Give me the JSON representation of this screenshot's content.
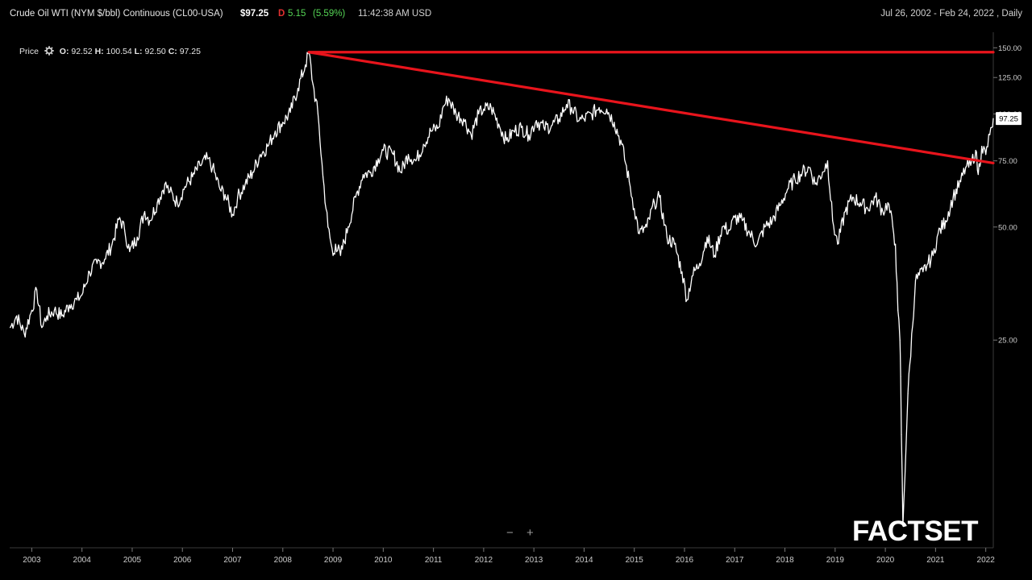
{
  "header": {
    "symbol_title": "Crude Oil WTI (NYM $/bbl) Continuous  (CL00-USA)",
    "last_price": "$97.25",
    "delayed_flag": "D",
    "change": "5.15",
    "change_pct": "(5.59%)",
    "time": "11:42:38 AM USD",
    "date_range": "Jul 26, 2002 - Feb 24, 2022 , Daily"
  },
  "legend": {
    "label": "Price",
    "open_label": "O:",
    "open": "92.52",
    "high_label": "H:",
    "high": "100.54",
    "low_label": "L:",
    "low": "92.50",
    "close_label": "C:",
    "close": "97.25"
  },
  "icons": {
    "settings": "gear-icon",
    "zoom_out": "minus-icon",
    "zoom_in": "plus-icon"
  },
  "zoom": {
    "out_label": "−",
    "in_label": "+"
  },
  "logo": {
    "text": "FACTSET"
  },
  "colors": {
    "background": "#000000",
    "price_line": "#ffffff",
    "trend_line": "#e8141c",
    "axis_text": "#cccccc"
  },
  "chart_data": {
    "type": "line",
    "title": "",
    "xlabel": "",
    "ylabel": "",
    "y_scale": "log",
    "ylim": [
      7,
      165
    ],
    "xlim": [
      2002.56,
      2022.15
    ],
    "x_tick_labels": [
      "2003",
      "2004",
      "2005",
      "2006",
      "2007",
      "2008",
      "2009",
      "2010",
      "2011",
      "2012",
      "2013",
      "2014",
      "2015",
      "2016",
      "2017",
      "2018",
      "2019",
      "2020",
      "2021",
      "2022"
    ],
    "y_tick_labels": [
      "25.00",
      "50.00",
      "75.00",
      "100.00",
      "125.00",
      "150.00"
    ],
    "last_value_label": "97.25",
    "grid": false,
    "series": [
      {
        "x": [
          2002.57,
          2002.7,
          2002.85,
          2003.0,
          2003.1,
          2003.2,
          2003.3,
          2003.45,
          2003.6,
          2003.75,
          2003.9,
          2004.0,
          2004.15,
          2004.3,
          2004.45,
          2004.6,
          2004.75,
          2004.85,
          2004.95,
          2005.1,
          2005.25,
          2005.35,
          2005.5,
          2005.65,
          2005.75,
          2005.9,
          2006.05,
          2006.2,
          2006.35,
          2006.5,
          2006.6,
          2006.75,
          2006.85,
          2007.0,
          2007.1,
          2007.25,
          2007.4,
          2007.55,
          2007.7,
          2007.85,
          2008.0,
          2008.15,
          2008.3,
          2008.45,
          2008.52,
          2008.6,
          2008.7,
          2008.8,
          2008.9,
          2009.0,
          2009.05,
          2009.15,
          2009.3,
          2009.45,
          2009.6,
          2009.75,
          2009.9,
          2010.0,
          2010.2,
          2010.35,
          2010.5,
          2010.65,
          2010.8,
          2010.95,
          2011.1,
          2011.2,
          2011.3,
          2011.45,
          2011.6,
          2011.75,
          2011.9,
          2012.0,
          2012.15,
          2012.3,
          2012.45,
          2012.6,
          2012.75,
          2012.9,
          2013.05,
          2013.2,
          2013.35,
          2013.5,
          2013.65,
          2013.75,
          2013.9,
          2014.0,
          2014.15,
          2014.3,
          2014.45,
          2014.6,
          2014.75,
          2014.9,
          2015.0,
          2015.1,
          2015.25,
          2015.4,
          2015.5,
          2015.65,
          2015.8,
          2015.95,
          2016.05,
          2016.15,
          2016.3,
          2016.45,
          2016.6,
          2016.75,
          2016.9,
          2017.0,
          2017.15,
          2017.3,
          2017.45,
          2017.6,
          2017.75,
          2017.9,
          2018.05,
          2018.2,
          2018.35,
          2018.5,
          2018.6,
          2018.75,
          2018.85,
          2018.95,
          2019.05,
          2019.2,
          2019.35,
          2019.5,
          2019.65,
          2019.8,
          2019.95,
          2020.05,
          2020.15,
          2020.2,
          2020.25,
          2020.29,
          2020.305,
          2020.32,
          2020.35,
          2020.45,
          2020.6,
          2020.75,
          2020.85,
          2020.95,
          2021.05,
          2021.2,
          2021.35,
          2021.5,
          2021.6,
          2021.7,
          2021.8,
          2021.85,
          2021.92,
          2022.0,
          2022.08,
          2022.12,
          2022.15
        ],
        "y": [
          27,
          29,
          26,
          30,
          34,
          27,
          29,
          30,
          29,
          31,
          32,
          33,
          38,
          40,
          41,
          45,
          53,
          49,
          43,
          47,
          55,
          52,
          58,
          65,
          62,
          58,
          64,
          68,
          73,
          76,
          72,
          63,
          61,
          54,
          60,
          65,
          70,
          78,
          82,
          90,
          95,
          101,
          117,
          135,
          146,
          120,
          100,
          68,
          50,
          42,
          45,
          42,
          50,
          60,
          69,
          70,
          76,
          80,
          78,
          70,
          78,
          75,
          83,
          90,
          92,
          105,
          110,
          100,
          97,
          88,
          100,
          103,
          104,
          94,
          85,
          90,
          92,
          88,
          96,
          92,
          93,
          97,
          106,
          104,
          96,
          97,
          100,
          104,
          103,
          95,
          83,
          66,
          56,
          48,
          50,
          58,
          60,
          47,
          45,
          38,
          32,
          37,
          40,
          47,
          42,
          50,
          49,
          53,
          52,
          48,
          45,
          50,
          52,
          57,
          63,
          67,
          70,
          72,
          65,
          70,
          75,
          52,
          45,
          55,
          60,
          58,
          56,
          60,
          55,
          58,
          50,
          45,
          30,
          25,
          20,
          14,
          8,
          18,
          36,
          38,
          40,
          42,
          48,
          52,
          60,
          66,
          72,
          73,
          80,
          69,
          82,
          78,
          88,
          92,
          97.25
        ]
      }
    ],
    "trend_lines": [
      {
        "from": [
          2008.52,
          146
        ],
        "to": [
          2022.15,
          146
        ]
      },
      {
        "from": [
          2008.52,
          146
        ],
        "to": [
          2022.15,
          74
        ]
      }
    ]
  }
}
